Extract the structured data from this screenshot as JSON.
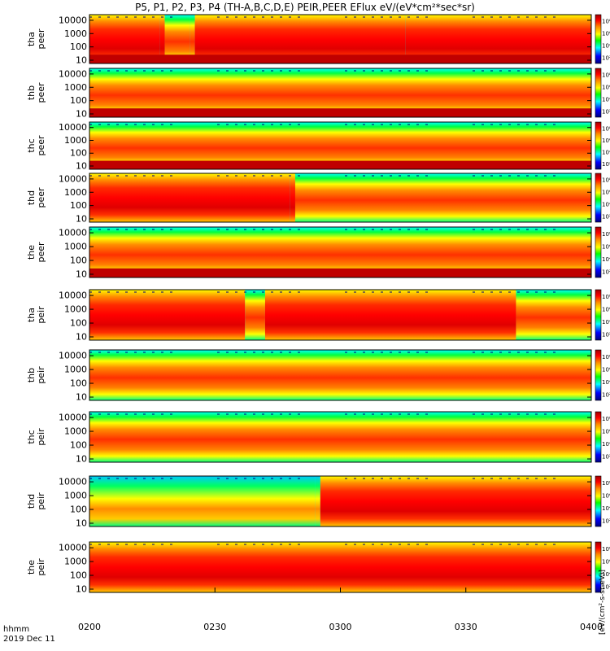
{
  "chart_data": {
    "type": "heatmap",
    "title": "P5, P1, P2, P3, P4 (TH-A,B,C,D,E) PEIR,PEER EFlux eV/(eV*cm²*sec*sr)",
    "x_ticks": [
      "0200",
      "0230",
      "0300",
      "0330",
      "0400"
    ],
    "x_ticks_minutes": [
      0,
      30,
      60,
      90,
      120
    ],
    "x_label_line1": "hhmm",
    "x_label_line2": "2019 Dec 11",
    "y_scale": "log",
    "y_ticks": [
      "10",
      "100",
      "1000",
      "10000"
    ],
    "colorbar_label": "[eV/(cm²-s-sr-eV)]",
    "colorbar_ticks": [
      "10²",
      "10⁴",
      "10⁶",
      "10⁸"
    ],
    "colors": [
      "#000080",
      "#0000ff",
      "#00ffff",
      "#00ff00",
      "#ffff00",
      "#ff8c00",
      "#ff0000",
      "#a00000"
    ],
    "panels": [
      {
        "label": "tha\npeer",
        "instrument": "peer",
        "probe": "tha",
        "profile": [
          [
            0,
            "high"
          ],
          [
            14,
            "high"
          ],
          [
            15,
            "mid"
          ],
          [
            20,
            "mid"
          ],
          [
            21,
            "high"
          ],
          [
            63,
            "high"
          ]
        ],
        "saturated_band": true
      },
      {
        "label": "thb\npeer",
        "instrument": "peer",
        "probe": "thb",
        "profile": [
          [
            0,
            "mid"
          ],
          [
            100,
            "mid"
          ]
        ],
        "saturated_band": true
      },
      {
        "label": "thc\npeer",
        "instrument": "peer",
        "probe": "thc",
        "profile": [
          [
            0,
            "mid"
          ],
          [
            100,
            "mid"
          ]
        ],
        "saturated_band": true
      },
      {
        "label": "thd\npeer",
        "instrument": "peer",
        "probe": "thd",
        "profile": [
          [
            0,
            "high"
          ],
          [
            40,
            "high"
          ],
          [
            41,
            "mid"
          ],
          [
            100,
            "mid"
          ]
        ],
        "saturated_band": false
      },
      {
        "label": "the\npeer",
        "instrument": "peer",
        "probe": "the",
        "profile": [
          [
            0,
            "mid"
          ],
          [
            100,
            "mid"
          ]
        ],
        "saturated_band": true
      },
      {
        "label": "tha\npeir",
        "instrument": "peir",
        "probe": "tha",
        "profile": [
          [
            0,
            "high"
          ],
          [
            31,
            "mid"
          ],
          [
            35,
            "high"
          ],
          [
            85,
            "mid"
          ],
          [
            100,
            "high"
          ]
        ],
        "saturated_band": false
      },
      {
        "label": "thb\npeir",
        "instrument": "peir",
        "probe": "thb",
        "profile": [
          [
            0,
            "mid"
          ],
          [
            100,
            "mid"
          ]
        ],
        "saturated_band": false
      },
      {
        "label": "thc\npeir",
        "instrument": "peir",
        "probe": "thc",
        "profile": [
          [
            0,
            "mid"
          ],
          [
            100,
            "mid"
          ]
        ],
        "saturated_band": false
      },
      {
        "label": "thd\npeir",
        "instrument": "peir",
        "probe": "thd",
        "profile": [
          [
            0,
            "low"
          ],
          [
            45,
            "low"
          ],
          [
            46,
            "high"
          ],
          [
            100,
            "high"
          ]
        ],
        "saturated_band": false
      },
      {
        "label": "the\npeir",
        "instrument": "peir",
        "probe": "the",
        "profile": [
          [
            0,
            "high"
          ],
          [
            100,
            "high"
          ]
        ],
        "saturated_band": false
      }
    ]
  }
}
